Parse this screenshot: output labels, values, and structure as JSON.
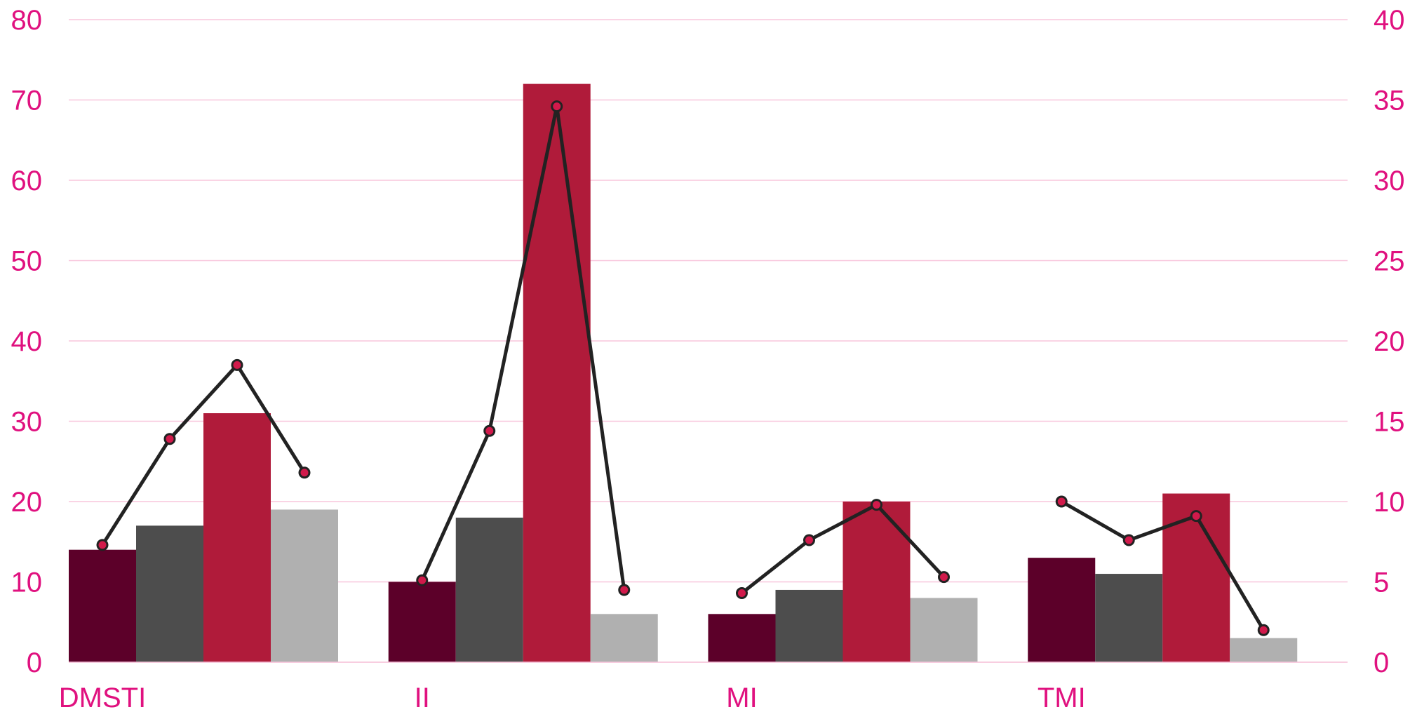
{
  "chart_data": {
    "type": "bar",
    "categories": [
      "DMSTI",
      "II",
      "MI",
      "TMI"
    ],
    "bar_series": [
      {
        "values": [
          14,
          10,
          6,
          13
        ],
        "color": "#5c0029"
      },
      {
        "values": [
          17,
          18,
          9,
          11
        ],
        "color": "#4d4d4d"
      },
      {
        "values": [
          31,
          72,
          20,
          21
        ],
        "color": "#b01b3a"
      },
      {
        "values": [
          19,
          6,
          8,
          3
        ],
        "color": "#b0b0b0"
      }
    ],
    "line_series": {
      "axis": "right",
      "values": [
        [
          7.3,
          13.9,
          18.5,
          11.8
        ],
        [
          5.1,
          14.4,
          34.6,
          4.5
        ],
        [
          4.3,
          7.6,
          9.8,
          5.3
        ],
        [
          10.0,
          7.6,
          9.1,
          2.0
        ]
      ],
      "line_color": "#222222",
      "marker_fill": "#d11a4b"
    },
    "y_left": {
      "ylim": [
        0,
        80
      ],
      "ticks": [
        "0",
        "10",
        "20",
        "30",
        "40",
        "50",
        "60",
        "70",
        "80"
      ]
    },
    "y_right": {
      "ylim": [
        0,
        40
      ],
      "ticks": [
        "0",
        "5",
        "10",
        "15",
        "20",
        "25",
        "30",
        "35",
        "40"
      ]
    },
    "grid": true,
    "colors": {
      "axis_text": "#e0117f",
      "grid": "#f8c6dc"
    }
  }
}
